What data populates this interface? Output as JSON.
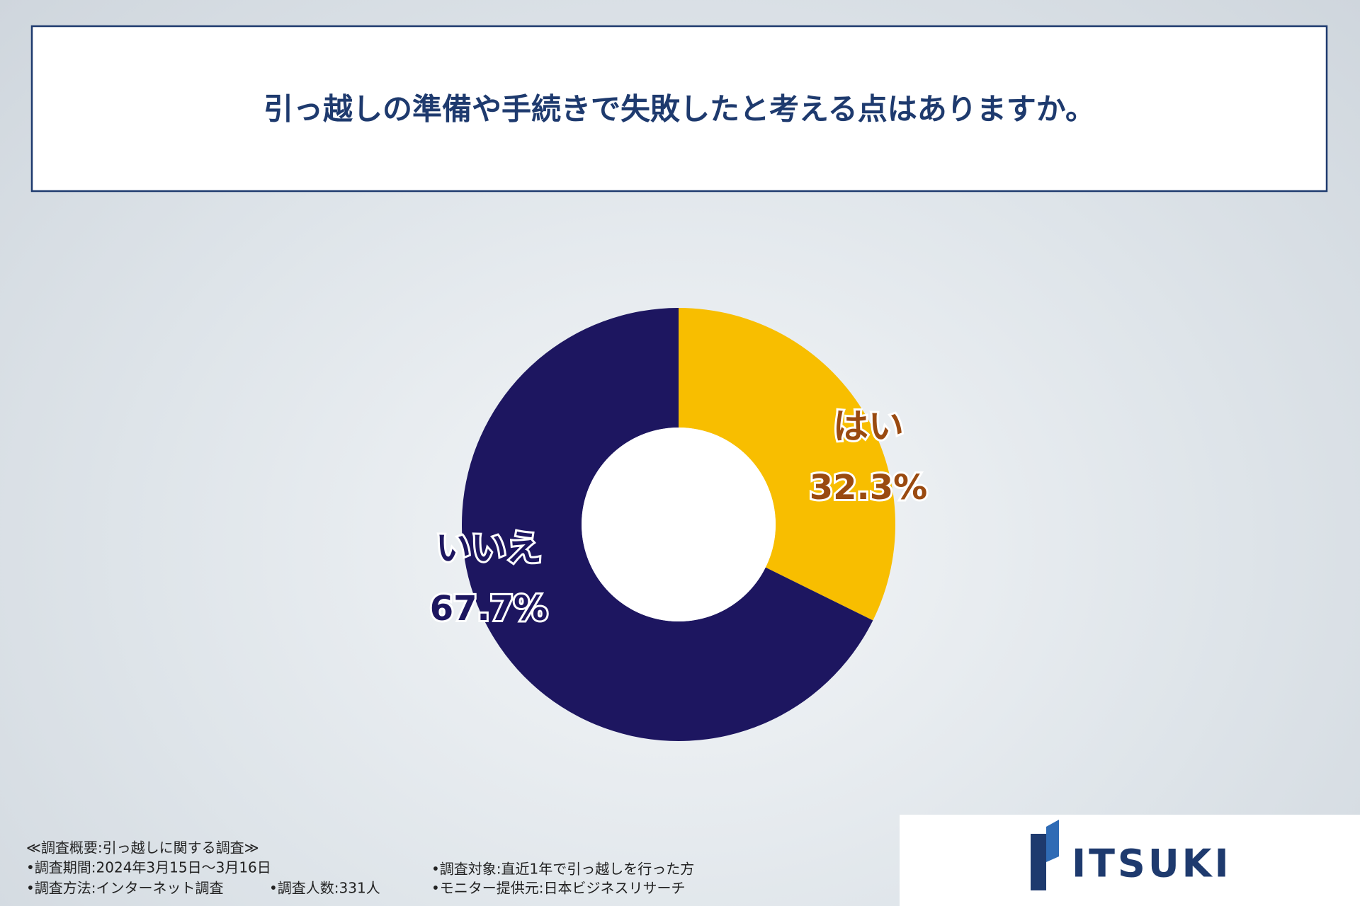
{
  "chart_data": {
    "type": "pie",
    "donut": true,
    "title": "引っ越しの準備や手続きで失敗したと考える点はありますか。",
    "categories": [
      "はい",
      "いいえ"
    ],
    "values": [
      32.3,
      67.7
    ],
    "value_labels": [
      "32.3%",
      "67.7%"
    ],
    "colors": [
      "#f8be00",
      "#1d1660"
    ],
    "label_colors": [
      "#9a4a10",
      "#1d1660"
    ],
    "notes": [
      "≪調査概要:引っ越しに関する調査≫",
      "•調査期間:2024年3月15日～3月16日",
      "•調査方法:インターネット調査",
      "•調査人数:331人",
      "•調査対象:直近1年で引っ越しを行った方",
      "•モニター提供元:日本ビジネスリサーチ"
    ],
    "logo": "ITSUKI"
  }
}
